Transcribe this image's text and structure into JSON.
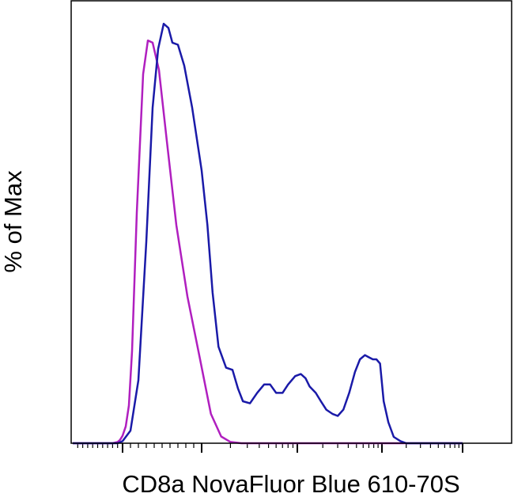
{
  "chart_data": {
    "type": "line",
    "title": "",
    "xlabel": "CD8a NovaFluor Blue 610-70S",
    "ylabel": "% of Max",
    "x_scale": "log",
    "xlim": [
      -1000,
      1000000
    ],
    "ylim": [
      0,
      100
    ],
    "tick_labels_shown": false,
    "grid": false,
    "legend": "none",
    "series": [
      {
        "color": "#b01fbf",
        "x": [
          -1000,
          -200,
          -100,
          -50,
          0,
          40,
          80,
          120,
          180,
          260,
          320,
          380,
          460,
          560,
          680,
          820,
          980,
          1250,
          1600,
          2000,
          2600,
          3500,
          5000,
          10000,
          100000,
          1000000
        ],
        "y": [
          0,
          0,
          0.3,
          0.8,
          1.8,
          4,
          9,
          22,
          55,
          88,
          96,
          95.5,
          89,
          72,
          52,
          35,
          20,
          7,
          1.6,
          0.3,
          0,
          0,
          0,
          0,
          0,
          0
        ]
      },
      {
        "color": "#1a1aa8",
        "x": [
          -1000,
          -100,
          0,
          100,
          200,
          300,
          380,
          450,
          520,
          580,
          630,
          700,
          780,
          880,
          1000,
          1150,
          1300,
          1500,
          1800,
          2100,
          2400,
          2700,
          3200,
          3800,
          4500,
          5200,
          6000,
          7000,
          8000,
          9500,
          11000,
          12500,
          14000,
          16500,
          19000,
          22000,
          26000,
          30000,
          35000,
          41000,
          48000,
          55000,
          63000,
          70000,
          78000,
          86000,
          95000,
          105000,
          120000,
          140000,
          170000,
          200000,
          250000,
          300000,
          400000,
          600000,
          1000000
        ],
        "y": [
          0,
          0,
          0.5,
          3,
          15,
          48,
          80,
          94,
          100,
          99,
          95.5,
          95,
          90,
          80,
          65,
          52,
          36,
          23,
          18,
          17.5,
          13,
          10,
          9.5,
          12,
          14,
          14,
          12,
          12,
          14,
          16,
          16.5,
          15.5,
          13.5,
          12,
          10,
          8,
          7,
          6.5,
          8,
          12,
          17,
          20,
          21,
          20.5,
          20,
          20,
          19,
          10,
          5,
          1.5,
          0.5,
          0,
          0,
          0,
          0,
          0,
          0
        ]
      }
    ]
  }
}
